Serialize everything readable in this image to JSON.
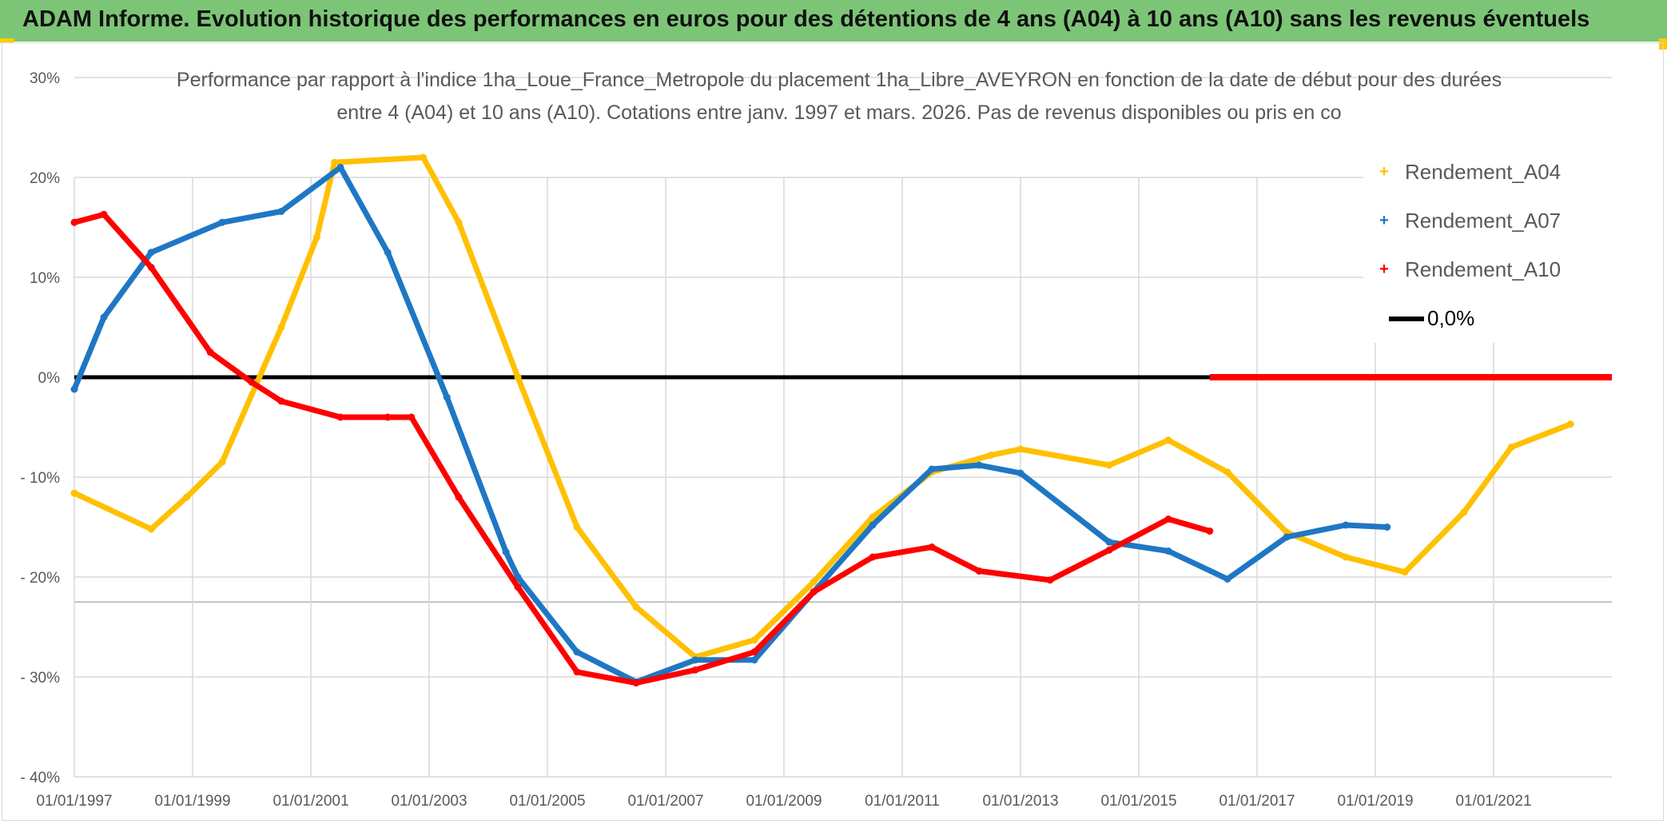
{
  "banner": {
    "title": "ADAM Informe. Evolution historique des performances en euros pour des détentions de 4 ans (A04) à 10 ans (A10) sans les revenus éventuels"
  },
  "colors": {
    "a04": "#ffc000",
    "a07": "#1f77c4",
    "a10": "#ff0000",
    "zero": "#000000",
    "banner": "#7cc576"
  },
  "chart_data": {
    "type": "line",
    "title_lines": [
      "Performance par rapport à l'indice 1ha_Loue_France_Metropole  du placement 1ha_Libre_AVEYRON en fonction de la date de début pour des durées",
      "entre 4 (A04) et 10 ans (A10). Cotations entre janv. 1997 et mars. 2026. Pas de revenus disponibles ou pris en co"
    ],
    "xlabel": "",
    "ylabel": "",
    "x_range": [
      1997.0,
      2023.0
    ],
    "ylim": [
      -40,
      30
    ],
    "y_ticks": [
      30,
      20,
      10,
      0,
      -10,
      -20,
      -30,
      -40
    ],
    "y_tick_labels": [
      "30%",
      "20%",
      "10%",
      "0%",
      "- 10%",
      "- 20%",
      "- 30%",
      "- 40%"
    ],
    "x_ticks": [
      1997,
      1999,
      2001,
      2003,
      2005,
      2007,
      2009,
      2011,
      2013,
      2015,
      2017,
      2019,
      2021
    ],
    "x_tick_labels": [
      "01/01/1997",
      "01/01/1999",
      "01/01/2001",
      "01/01/2003",
      "01/01/2005",
      "01/01/2007",
      "01/01/2009",
      "01/01/2011",
      "01/01/2013",
      "01/01/2015",
      "01/01/2017",
      "01/01/2019",
      "01/01/2021"
    ],
    "grid": true,
    "legend_position": "top-right",
    "series": [
      {
        "name": "Rendement_A04",
        "color": "#ffc000",
        "points": [
          [
            1997.0,
            -11.6
          ],
          [
            1998.3,
            -15.2
          ],
          [
            1998.9,
            -12
          ],
          [
            1999.5,
            -8.5
          ],
          [
            2000.5,
            5
          ],
          [
            2001.1,
            14
          ],
          [
            2001.4,
            21.5
          ],
          [
            2002.9,
            22
          ],
          [
            2003.5,
            15.5
          ],
          [
            2004.5,
            0
          ],
          [
            2005.5,
            -15
          ],
          [
            2006.5,
            -23
          ],
          [
            2007.5,
            -28
          ],
          [
            2008.5,
            -26.3
          ],
          [
            2009.5,
            -20.5
          ],
          [
            2010.5,
            -14
          ],
          [
            2011.5,
            -9.5
          ],
          [
            2012.5,
            -7.8
          ],
          [
            2013.0,
            -7.2
          ],
          [
            2014.5,
            -8.8
          ],
          [
            2015.5,
            -6.3
          ],
          [
            2016.5,
            -9.5
          ],
          [
            2017.5,
            -15.5
          ],
          [
            2018.5,
            -18
          ],
          [
            2019.5,
            -19.5
          ],
          [
            2020.5,
            -13.5
          ],
          [
            2021.3,
            -7
          ],
          [
            2022.3,
            -4.7
          ]
        ]
      },
      {
        "name": "Rendement_A07",
        "color": "#1f77c4",
        "points": [
          [
            1997.0,
            -1.2
          ],
          [
            1997.5,
            6
          ],
          [
            1998.3,
            12.5
          ],
          [
            1999.5,
            15.5
          ],
          [
            2000.5,
            16.6
          ],
          [
            2001.5,
            21
          ],
          [
            2002.3,
            12.5
          ],
          [
            2003.3,
            -2
          ],
          [
            2004.3,
            -17.5
          ],
          [
            2004.5,
            -20
          ],
          [
            2005.5,
            -27.5
          ],
          [
            2006.5,
            -30.5
          ],
          [
            2007.5,
            -28.3
          ],
          [
            2008.5,
            -28.3
          ],
          [
            2009.5,
            -21.5
          ],
          [
            2010.5,
            -14.8
          ],
          [
            2011.5,
            -9.2
          ],
          [
            2012.3,
            -8.8
          ],
          [
            2013.0,
            -9.6
          ],
          [
            2014.5,
            -16.5
          ],
          [
            2015.5,
            -17.4
          ],
          [
            2016.5,
            -20.2
          ],
          [
            2017.5,
            -16
          ],
          [
            2018.5,
            -14.8
          ],
          [
            2019.2,
            -15
          ]
        ]
      },
      {
        "name": "Rendement_A10",
        "color": "#ff0000",
        "points": [
          [
            1997.0,
            15.5
          ],
          [
            1997.5,
            16.3
          ],
          [
            1998.3,
            11
          ],
          [
            1999.3,
            2.5
          ],
          [
            2000.0,
            -0.5
          ],
          [
            2000.5,
            -2.4
          ],
          [
            2001.5,
            -4
          ],
          [
            2002.3,
            -4
          ],
          [
            2002.7,
            -4
          ],
          [
            2003.5,
            -12
          ],
          [
            2004.5,
            -21
          ],
          [
            2005.5,
            -29.5
          ],
          [
            2006.5,
            -30.6
          ],
          [
            2007.5,
            -29.3
          ],
          [
            2008.5,
            -27.5
          ],
          [
            2009.5,
            -21.5
          ],
          [
            2010.5,
            -18
          ],
          [
            2011.5,
            -17
          ],
          [
            2012.3,
            -19.4
          ],
          [
            2013.5,
            -20.3
          ],
          [
            2014.5,
            -17.3
          ],
          [
            2015.5,
            -14.2
          ],
          [
            2016.2,
            -15.4
          ]
        ]
      },
      {
        "name": "0,0%",
        "color": "#000000",
        "points": [
          [
            1997.0,
            0
          ],
          [
            2023.0,
            0
          ]
        ]
      }
    ],
    "a10_zero_tail": {
      "name": "Rendement_A10",
      "from": 2016.2,
      "to": 2023.0,
      "value": 0
    }
  }
}
